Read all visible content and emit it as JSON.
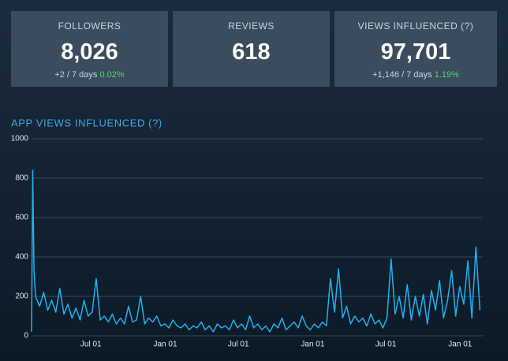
{
  "stats": [
    {
      "label": "FOLLOWERS",
      "value": "8,026",
      "change": "+2 / 7 days",
      "percent": "0.02%"
    },
    {
      "label": "REVIEWS",
      "value": "618"
    },
    {
      "label": "VIEWS INFLUENCED (?)",
      "value": "97,701",
      "change": "+1,146 / 7 days",
      "percent": "1.19%"
    }
  ],
  "chart_data": {
    "type": "line",
    "title": "APP VIEWS INFLUENCED (?)",
    "color": "#1fb1ee",
    "grid": true,
    "xlim": [
      0,
      1117
    ],
    "ylim": [
      0,
      1000
    ],
    "yticks": [
      0,
      200,
      400,
      600,
      800,
      1000
    ],
    "xticks": [
      {
        "value": 147,
        "label": "Jul 01"
      },
      {
        "value": 331,
        "label": "Jan 01"
      },
      {
        "value": 512,
        "label": "Jul 01"
      },
      {
        "value": 696,
        "label": "Jan 01"
      },
      {
        "value": 877,
        "label": "Jul 01"
      },
      {
        "value": 1061,
        "label": "Jan 01"
      }
    ],
    "x": [
      0,
      3,
      6,
      10,
      20,
      30,
      40,
      50,
      60,
      70,
      80,
      90,
      100,
      110,
      120,
      130,
      140,
      150,
      160,
      170,
      180,
      190,
      200,
      210,
      220,
      230,
      240,
      250,
      260,
      270,
      280,
      290,
      300,
      310,
      320,
      330,
      340,
      350,
      360,
      370,
      380,
      390,
      400,
      410,
      420,
      430,
      440,
      450,
      460,
      470,
      480,
      490,
      500,
      510,
      520,
      530,
      540,
      550,
      560,
      570,
      580,
      590,
      600,
      610,
      620,
      630,
      640,
      650,
      660,
      670,
      680,
      690,
      700,
      710,
      720,
      730,
      740,
      750,
      760,
      770,
      780,
      790,
      800,
      810,
      820,
      830,
      840,
      850,
      860,
      870,
      880,
      890,
      900,
      910,
      920,
      930,
      940,
      950,
      960,
      970,
      980,
      990,
      1000,
      1010,
      1020,
      1030,
      1040,
      1050,
      1060,
      1070,
      1080,
      1090,
      1100,
      1110
    ],
    "values": [
      20,
      840,
      330,
      200,
      150,
      220,
      130,
      180,
      120,
      240,
      110,
      160,
      90,
      140,
      80,
      180,
      100,
      120,
      290,
      80,
      100,
      70,
      110,
      60,
      90,
      60,
      150,
      70,
      80,
      200,
      60,
      90,
      70,
      100,
      50,
      60,
      40,
      80,
      50,
      40,
      60,
      30,
      50,
      40,
      70,
      30,
      50,
      20,
      60,
      40,
      50,
      30,
      80,
      40,
      60,
      30,
      100,
      40,
      60,
      30,
      50,
      20,
      60,
      40,
      90,
      30,
      50,
      70,
      40,
      100,
      50,
      30,
      60,
      40,
      70,
      50,
      290,
      120,
      340,
      90,
      150,
      60,
      100,
      70,
      90,
      50,
      110,
      60,
      80,
      40,
      90,
      390,
      110,
      200,
      90,
      260,
      80,
      200,
      100,
      210,
      60,
      230,
      130,
      280,
      90,
      180,
      330,
      100,
      250,
      160,
      380,
      90,
      450,
      130
    ]
  }
}
